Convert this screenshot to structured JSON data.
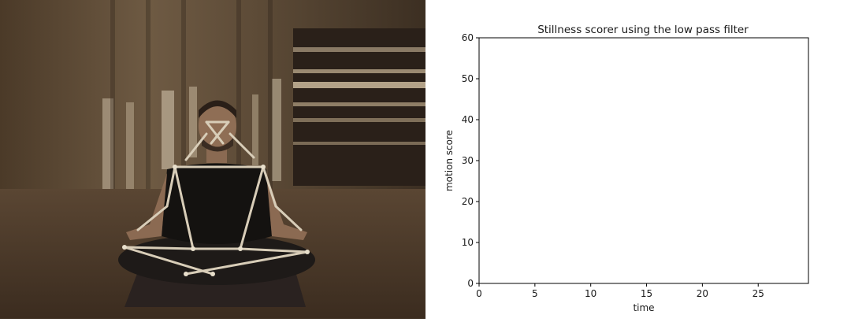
{
  "colors": {
    "photo_wall": "#5a4632",
    "photo_floor": "#4a3726",
    "skeleton": "#d8cdb8",
    "axis": "#000000",
    "plot_bg": "#ffffff"
  },
  "video": {
    "subject": "seated-meditation-pose-overlay"
  },
  "chart_data": {
    "type": "line",
    "title": "Stillness scorer using the low pass filter",
    "xlabel": "time",
    "ylabel": "motion score",
    "xlim": [
      0,
      29.5
    ],
    "ylim": [
      0,
      60
    ],
    "xticks": [
      0,
      5,
      10,
      15,
      20,
      25
    ],
    "yticks": [
      0,
      10,
      20,
      30,
      40,
      50,
      60
    ],
    "grid": false,
    "series": []
  }
}
